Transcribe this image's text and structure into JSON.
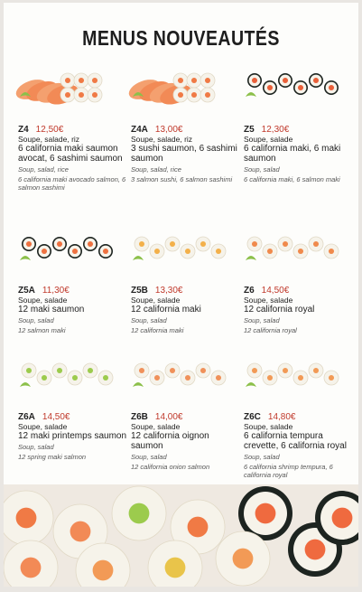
{
  "header": {
    "title": "MENUS NOUVEAUTÉS"
  },
  "items": [
    {
      "code": "Z4",
      "price": "12,50€",
      "base": "Soupe, salade, riz",
      "dish": "6 california maki saumon avocat, 6 sashimi saumon",
      "base_en": "Soup, salad, rice",
      "dish_en": "6 california maki avocado salmon, 6 salmon sashimi"
    },
    {
      "code": "Z4A",
      "price": "13,00€",
      "base": "Soupe, salade, riz",
      "dish": "3 sushi saumon, 6 sashimi saumon",
      "base_en": "Soup, salad, rice",
      "dish_en": "3 salmon sushi, 6 salmon sashimi"
    },
    {
      "code": "Z5",
      "price": "12,30€",
      "base": "Soupe, salade",
      "dish": "6 california maki, 6 maki saumon",
      "base_en": "Soup, salad",
      "dish_en": "6 california maki, 6 salmon maki"
    },
    {
      "code": "Z5A",
      "price": "11,30€",
      "base": "Soupe, salade",
      "dish": "12 maki saumon",
      "base_en": "Soup, salad",
      "dish_en": "12 salmon maki"
    },
    {
      "code": "Z5B",
      "price": "13,30€",
      "base": "Soupe, salade",
      "dish": "12 california maki",
      "base_en": "Soup, salad",
      "dish_en": "12 california maki"
    },
    {
      "code": "Z6",
      "price": "14,50€",
      "base": "Soupe, salade",
      "dish": "12 california royal",
      "base_en": "Soup, salad",
      "dish_en": "12 california royal"
    },
    {
      "code": "Z6A",
      "price": "14,50€",
      "base": "Soupe, salade",
      "dish": "12 maki printemps saumon",
      "base_en": "Soup, salad",
      "dish_en": "12 spring maki salmon"
    },
    {
      "code": "Z6B",
      "price": "14,00€",
      "base": "Soupe, salade",
      "dish": "12 california oignon saumon",
      "base_en": "Soup, salad",
      "dish_en": "12 california onion salmon"
    },
    {
      "code": "Z6C",
      "price": "14,80€",
      "base": "Soupe, salade",
      "dish": "6 california tempura crevette, 6 california royal",
      "base_en": "Soup, salad",
      "dish_en": "6 california shrimp tempura, 6 california royal"
    }
  ]
}
